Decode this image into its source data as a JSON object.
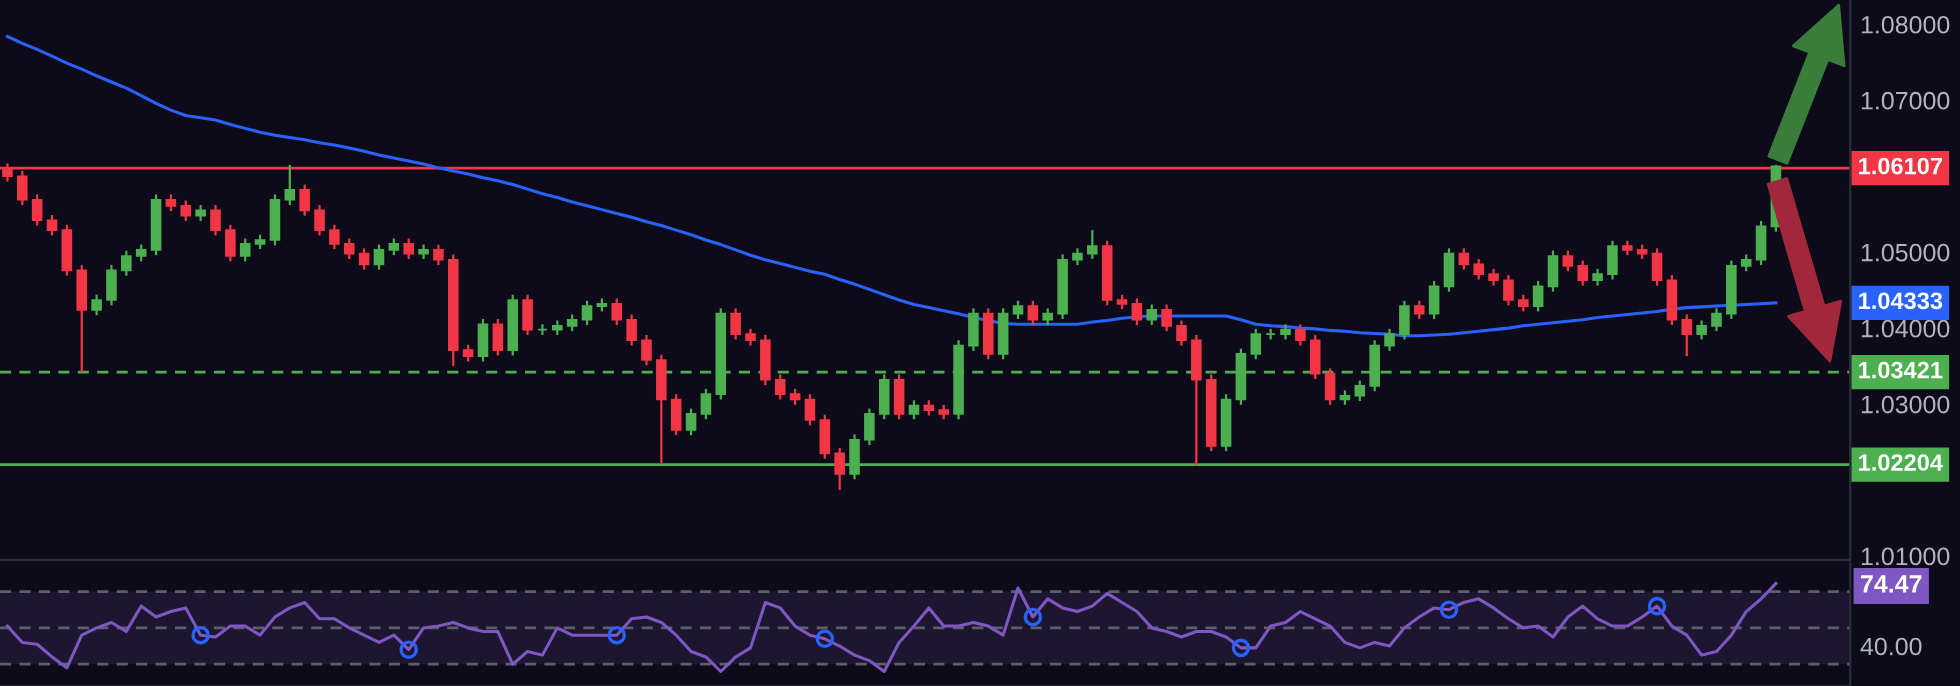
{
  "chart_data": [
    {
      "type": "candlestick",
      "categories": [
        null,
        null,
        null,
        null,
        null,
        null,
        null,
        null,
        null,
        null,
        null,
        null,
        null,
        null,
        null,
        null,
        null,
        null,
        null,
        null,
        null,
        null,
        null,
        null,
        null,
        null,
        null,
        null,
        null,
        null,
        null,
        null,
        null,
        null,
        null,
        null,
        null,
        null,
        null,
        null,
        null,
        null,
        null,
        null,
        null,
        null,
        null,
        null,
        null,
        null,
        null,
        null,
        null,
        null,
        null,
        null,
        null,
        null,
        null,
        null,
        null,
        null,
        null,
        null,
        null,
        null,
        null,
        null,
        null,
        null,
        null,
        null,
        null,
        null,
        null,
        null,
        null,
        null,
        null,
        null,
        null,
        null,
        null,
        null,
        null,
        null,
        null,
        null,
        null,
        null,
        null,
        null,
        null,
        null,
        null,
        null,
        null,
        null,
        null,
        null,
        null,
        null,
        null,
        null,
        null,
        null,
        null,
        null,
        null,
        null,
        null,
        null,
        null,
        null,
        null,
        null,
        null,
        null,
        null,
        null
      ],
      "ohlc": [
        [
          1.061,
          1.0617,
          1.0593,
          1.06
        ],
        [
          1.06,
          1.0607,
          1.0562,
          1.0569
        ],
        [
          1.0569,
          1.0576,
          1.0535,
          1.0542
        ],
        [
          1.0542,
          1.0549,
          1.0522,
          1.0529
        ],
        [
          1.0529,
          1.0536,
          1.0469,
          1.0476
        ],
        [
          1.0476,
          1.0483,
          1.0342,
          1.0424
        ],
        [
          1.0424,
          1.0444,
          1.0417,
          1.0437
        ],
        [
          1.0437,
          1.0483,
          1.043,
          1.0476
        ],
        [
          1.0476,
          1.0502,
          1.0469,
          1.0495
        ],
        [
          1.0495,
          1.051,
          1.0488,
          1.0503
        ],
        [
          1.0503,
          1.0576,
          1.0496,
          1.0569
        ],
        [
          1.0569,
          1.0576,
          1.0554,
          1.0561
        ],
        [
          1.0561,
          1.0568,
          1.0541,
          1.0548
        ],
        [
          1.0548,
          1.0562,
          1.0541,
          1.0555
        ],
        [
          1.0555,
          1.0562,
          1.0522,
          1.0529
        ],
        [
          1.0529,
          1.0536,
          1.0488,
          1.0495
        ],
        [
          1.0495,
          1.0518,
          1.0488,
          1.0511
        ],
        [
          1.0511,
          1.0523,
          1.0504,
          1.0516
        ],
        [
          1.0516,
          1.0576,
          1.0509,
          1.0569
        ],
        [
          1.0569,
          1.0615,
          1.0562,
          1.0582
        ],
        [
          1.0582,
          1.0589,
          1.0548,
          1.0555
        ],
        [
          1.0555,
          1.0562,
          1.0522,
          1.0529
        ],
        [
          1.0529,
          1.0536,
          1.0504,
          1.0511
        ],
        [
          1.0511,
          1.0518,
          1.0491,
          1.0498
        ],
        [
          1.0498,
          1.0505,
          1.0477,
          1.0484
        ],
        [
          1.0484,
          1.051,
          1.0477,
          1.0503
        ],
        [
          1.0503,
          1.0518,
          1.0496,
          1.0511
        ],
        [
          1.0511,
          1.0518,
          1.0491,
          1.0498
        ],
        [
          1.0498,
          1.051,
          1.0491,
          1.0503
        ],
        [
          1.0503,
          1.051,
          1.0483,
          1.049
        ],
        [
          1.049,
          1.0497,
          1.035,
          1.0371
        ],
        [
          1.0371,
          1.0378,
          1.0356,
          1.0363
        ],
        [
          1.0363,
          1.0412,
          1.0356,
          1.0405
        ],
        [
          1.0405,
          1.0412,
          1.0364,
          1.0371
        ],
        [
          1.0371,
          1.0444,
          1.0364,
          1.0437
        ],
        [
          1.0437,
          1.0444,
          1.0391,
          1.0398
        ],
        [
          1.0398,
          1.0405,
          1.0391,
          1.0398
        ],
        [
          1.0398,
          1.041,
          1.0391,
          1.0403
        ],
        [
          1.0403,
          1.0418,
          1.0396,
          1.0411
        ],
        [
          1.0411,
          1.0436,
          1.0404,
          1.0429
        ],
        [
          1.0429,
          1.0439,
          1.0422,
          1.0432
        ],
        [
          1.0432,
          1.0439,
          1.0404,
          1.0411
        ],
        [
          1.0411,
          1.0418,
          1.0377,
          1.0384
        ],
        [
          1.0384,
          1.0391,
          1.0351,
          1.0358
        ],
        [
          1.0358,
          1.0365,
          1.0221,
          1.0306
        ],
        [
          1.0306,
          1.0313,
          1.0259,
          1.0266
        ],
        [
          1.0266,
          1.0294,
          1.0259,
          1.0287
        ],
        [
          1.0287,
          1.032,
          1.028,
          1.0313
        ],
        [
          1.0313,
          1.0426,
          1.0306,
          1.0419
        ],
        [
          1.0419,
          1.0426,
          1.0385,
          1.0392
        ],
        [
          1.0392,
          1.0399,
          1.0377,
          1.0384
        ],
        [
          1.0384,
          1.0391,
          1.0325,
          1.0332
        ],
        [
          1.0332,
          1.0339,
          1.0306,
          1.0313
        ],
        [
          1.0313,
          1.032,
          1.0299,
          1.0306
        ],
        [
          1.0306,
          1.0313,
          1.0272,
          1.0279
        ],
        [
          1.0279,
          1.0286,
          1.0228,
          1.0235
        ],
        [
          1.0235,
          1.0242,
          1.0187,
          1.0208
        ],
        [
          1.0208,
          1.026,
          1.0201,
          1.0253
        ],
        [
          1.0253,
          1.0294,
          1.0246,
          1.0287
        ],
        [
          1.0287,
          1.0339,
          1.028,
          1.0332
        ],
        [
          1.0332,
          1.0339,
          1.028,
          1.0287
        ],
        [
          1.0287,
          1.0305,
          1.028,
          1.0298
        ],
        [
          1.0298,
          1.0305,
          1.0285,
          1.0292
        ],
        [
          1.0292,
          1.0299,
          1.028,
          1.0287
        ],
        [
          1.0287,
          1.0384,
          1.028,
          1.0377
        ],
        [
          1.0377,
          1.0426,
          1.037,
          1.0419
        ],
        [
          1.0419,
          1.0426,
          1.0359,
          1.0366
        ],
        [
          1.0366,
          1.0426,
          1.0359,
          1.0419
        ],
        [
          1.0419,
          1.0436,
          1.0412,
          1.0429
        ],
        [
          1.0429,
          1.0436,
          1.0404,
          1.0411
        ],
        [
          1.0411,
          1.0426,
          1.0404,
          1.0419
        ],
        [
          1.0419,
          1.0497,
          1.0412,
          1.049
        ],
        [
          1.049,
          1.0505,
          1.0483,
          1.0498
        ],
        [
          1.0498,
          1.0529,
          1.0491,
          1.0508
        ],
        [
          1.0508,
          1.0515,
          1.043,
          1.0437
        ],
        [
          1.0437,
          1.0444,
          1.0425,
          1.0432
        ],
        [
          1.0432,
          1.0439,
          1.0404,
          1.0411
        ],
        [
          1.0411,
          1.0431,
          1.0404,
          1.0424
        ],
        [
          1.0424,
          1.0431,
          1.0396,
          1.0403
        ],
        [
          1.0403,
          1.041,
          1.0377,
          1.0384
        ],
        [
          1.0384,
          1.0391,
          1.0219,
          1.0332
        ],
        [
          1.0332,
          1.0339,
          1.0238,
          1.0245
        ],
        [
          1.0245,
          1.0313,
          1.0238,
          1.0306
        ],
        [
          1.0306,
          1.0373,
          1.0299,
          1.0366
        ],
        [
          1.0366,
          1.0399,
          1.0359,
          1.0392
        ],
        [
          1.0392,
          1.0399,
          1.0385,
          1.0392
        ],
        [
          1.0392,
          1.0405,
          1.0385,
          1.0398
        ],
        [
          1.0398,
          1.0405,
          1.0377,
          1.0384
        ],
        [
          1.0384,
          1.0391,
          1.0333,
          1.034
        ],
        [
          1.034,
          1.0347,
          1.0299,
          1.0306
        ],
        [
          1.0306,
          1.0318,
          1.0299,
          1.0311
        ],
        [
          1.0311,
          1.0331,
          1.0304,
          1.0324
        ],
        [
          1.0324,
          1.0384,
          1.0317,
          1.0377
        ],
        [
          1.0377,
          1.0399,
          1.037,
          1.0392
        ],
        [
          1.0392,
          1.0436,
          1.0385,
          1.0429
        ],
        [
          1.0429,
          1.0436,
          1.0412,
          1.0419
        ],
        [
          1.0419,
          1.0462,
          1.0412,
          1.0455
        ],
        [
          1.0455,
          1.0505,
          1.0448,
          1.0498
        ],
        [
          1.0498,
          1.0505,
          1.0477,
          1.0484
        ],
        [
          1.0484,
          1.0491,
          1.0464,
          1.0471
        ],
        [
          1.0471,
          1.0478,
          1.0456,
          1.0463
        ],
        [
          1.0463,
          1.047,
          1.043,
          1.0437
        ],
        [
          1.0437,
          1.0444,
          1.0422,
          1.0429
        ],
        [
          1.0429,
          1.0462,
          1.0422,
          1.0455
        ],
        [
          1.0455,
          1.0502,
          1.0448,
          1.0495
        ],
        [
          1.0495,
          1.0502,
          1.0475,
          1.0482
        ],
        [
          1.0482,
          1.0489,
          1.0456,
          1.0463
        ],
        [
          1.0463,
          1.0478,
          1.0456,
          1.0471
        ],
        [
          1.0471,
          1.0515,
          1.0464,
          1.0508
        ],
        [
          1.0508,
          1.0515,
          1.0496,
          1.0503
        ],
        [
          1.0503,
          1.051,
          1.0491,
          1.0498
        ],
        [
          1.0498,
          1.0505,
          1.0456,
          1.0463
        ],
        [
          1.0463,
          1.047,
          1.0404,
          1.0411
        ],
        [
          1.0411,
          1.0418,
          1.0363,
          1.0392
        ],
        [
          1.0392,
          1.041,
          1.0385,
          1.0403
        ],
        [
          1.0403,
          1.0426,
          1.0396,
          1.0419
        ],
        [
          1.0419,
          1.0489,
          1.0412,
          1.0482
        ],
        [
          1.0482,
          1.0497,
          1.0475,
          1.049
        ],
        [
          1.049,
          1.0541,
          1.0483,
          1.0534
        ],
        [
          1.0534,
          1.0615,
          1.0527,
          1.0613
        ]
      ],
      "colors": [
        "#f23645",
        "#f23645",
        "#f23645",
        "#f23645",
        "#f23645",
        "#f23645",
        "#4caf50",
        "#4caf50",
        "#4caf50",
        "#4caf50",
        "#4caf50",
        "#f23645",
        "#f23645",
        "#4caf50",
        "#f23645",
        "#f23645",
        "#4caf50",
        "#4caf50",
        "#4caf50",
        "#4caf50",
        "#f23645",
        "#f23645",
        "#f23645",
        "#f23645",
        "#f23645",
        "#4caf50",
        "#4caf50",
        "#f23645",
        "#4caf50",
        "#f23645",
        "#f23645",
        "#f23645",
        "#4caf50",
        "#f23645",
        "#4caf50",
        "#f23645",
        "#4caf50",
        "#4caf50",
        "#4caf50",
        "#4caf50",
        "#4caf50",
        "#f23645",
        "#f23645",
        "#f23645",
        "#f23645",
        "#f23645",
        "#4caf50",
        "#4caf50",
        "#4caf50",
        "#f23645",
        "#f23645",
        "#f23645",
        "#f23645",
        "#f23645",
        "#f23645",
        "#f23645",
        "#f23645",
        "#4caf50",
        "#4caf50",
        "#4caf50",
        "#f23645",
        "#4caf50",
        "#f23645",
        "#f23645",
        "#4caf50",
        "#4caf50",
        "#f23645",
        "#4caf50",
        "#4caf50",
        "#f23645",
        "#4caf50",
        "#4caf50",
        "#4caf50",
        "#4caf50",
        "#f23645",
        "#f23645",
        "#f23645",
        "#4caf50",
        "#f23645",
        "#f23645",
        "#f23645",
        "#f23645",
        "#4caf50",
        "#4caf50",
        "#4caf50",
        "#4caf50",
        "#4caf50",
        "#f23645",
        "#f23645",
        "#f23645",
        "#4caf50",
        "#4caf50",
        "#4caf50",
        "#4caf50",
        "#4caf50",
        "#f23645",
        "#4caf50",
        "#4caf50",
        "#f23645",
        "#f23645",
        "#f23645",
        "#f23645",
        "#f23645",
        "#4caf50",
        "#4caf50",
        "#f23645",
        "#f23645",
        "#4caf50",
        "#4caf50",
        "#f23645",
        "#f23645",
        "#f23645",
        "#f23645",
        "#f23645",
        "#4caf50",
        "#4caf50",
        "#4caf50",
        "#4caf50",
        "#4caf50",
        "#4caf50"
      ],
      "series": [
        {
          "type": "line",
          "color": "#2962ff",
          "values": [
            1.0784,
            1.0775,
            1.0767,
            1.0758,
            1.0749,
            1.0741,
            1.0732,
            1.0724,
            1.0716,
            1.0706,
            1.0696,
            1.0687,
            1.068,
            1.0677,
            1.0674,
            1.0668,
            1.0663,
            1.0658,
            1.0654,
            1.0651,
            1.0648,
            1.0644,
            1.0641,
            1.0637,
            1.0633,
            1.0628,
            1.0624,
            1.062,
            1.0616,
            1.0611,
            1.0607,
            1.0603,
            1.0598,
            1.0594,
            1.0589,
            1.0583,
            1.0577,
            1.0572,
            1.0566,
            1.0561,
            1.0556,
            1.0551,
            1.0546,
            1.054,
            1.0535,
            1.0529,
            1.0523,
            1.0516,
            1.051,
            1.0503,
            1.0496,
            1.049,
            1.0485,
            1.048,
            1.0475,
            1.0471,
            1.0464,
            1.0458,
            1.0451,
            1.0444,
            1.0437,
            1.0431,
            1.0427,
            1.0423,
            1.0419,
            1.0414,
            1.041,
            1.0406,
            1.0405,
            1.0405,
            1.0405,
            1.0405,
            1.0405,
            1.0408,
            1.041,
            1.0413,
            1.0415,
            1.0416,
            1.0416,
            1.0416,
            1.0416,
            1.0416,
            1.0416,
            1.0411,
            1.0405,
            1.0403,
            1.0402,
            1.04,
            1.0399,
            1.0397,
            1.0396,
            1.0394,
            1.0393,
            1.0392,
            1.039,
            1.039,
            1.0391,
            1.0392,
            1.0394,
            1.0396,
            1.0398,
            1.04,
            1.0403,
            1.0405,
            1.0407,
            1.0409,
            1.0411,
            1.0414,
            1.0416,
            1.0418,
            1.042,
            1.0422,
            1.0425,
            1.0427,
            1.0428,
            1.0429,
            1.043,
            1.0431,
            1.0432,
            1.04333
          ]
        }
      ],
      "annotations": [
        "1.04333"
      ],
      "ylim": [
        1.0095,
        1.0832
      ],
      "yticks": [
        {
          "value": 1.08,
          "label": "1.08000"
        },
        {
          "value": 1.07,
          "label": "1.07000"
        },
        {
          "value": 1.05,
          "label": "1.05000"
        },
        {
          "value": 1.04,
          "label": "1.04000"
        },
        {
          "value": 1.03,
          "label": "1.03000"
        },
        {
          "value": 1.01,
          "label": "1.01000"
        }
      ],
      "ref_lines": [
        {
          "axis": "y",
          "value": 1.06107,
          "label": "1.06107",
          "color": "#f23645",
          "line_style": "solid"
        },
        {
          "axis": "y",
          "value": 1.03421,
          "label": "1.03421",
          "color": "#4caf50",
          "line_style": "dashed"
        },
        {
          "axis": "y",
          "value": 1.02204,
          "label": "1.02204",
          "color": "#4caf50",
          "line_style": "solid"
        }
      ],
      "tick_labels": "y"
    },
    {
      "type": "line",
      "categories": [
        null,
        null,
        null,
        null,
        null,
        null,
        null,
        null,
        null,
        null,
        null,
        null,
        null,
        null,
        null,
        null,
        null,
        null,
        null,
        null,
        null,
        null,
        null,
        null,
        null,
        null,
        null,
        null,
        null,
        null,
        null,
        null,
        null,
        null,
        null,
        null,
        null,
        null,
        null,
        null,
        null,
        null,
        null,
        null,
        null,
        null,
        null,
        null,
        null,
        null,
        null,
        null,
        null,
        null,
        null,
        null,
        null,
        null,
        null,
        null,
        null,
        null,
        null,
        null,
        null,
        null,
        null,
        null,
        null,
        null,
        null,
        null,
        null,
        null,
        null,
        null,
        null,
        null,
        null,
        null,
        null,
        null,
        null,
        null,
        null,
        null,
        null,
        null,
        null,
        null,
        null,
        null,
        null,
        null,
        null,
        null,
        null,
        null,
        null,
        null,
        null,
        null,
        null,
        null,
        null,
        null,
        null,
        null,
        null,
        null,
        null,
        null,
        null,
        null,
        null,
        null,
        null,
        null,
        null,
        null
      ],
      "series": [
        {
          "color": "#7e57c2",
          "values": [
            51,
            42,
            41,
            34,
            28,
            46,
            50,
            53,
            48,
            62,
            56,
            59,
            61,
            46,
            45,
            51,
            51,
            46,
            56,
            61,
            64,
            55,
            55,
            50,
            46,
            42,
            46,
            38,
            50,
            51,
            53,
            50,
            48,
            48,
            30,
            37,
            35,
            50,
            46,
            46,
            46,
            46,
            55,
            56,
            53,
            46,
            37,
            34,
            26,
            34,
            39,
            64,
            61,
            51,
            46,
            44,
            40,
            35,
            32,
            26,
            42,
            51,
            61,
            51,
            51,
            53,
            51,
            46,
            72,
            56,
            66,
            61,
            59,
            62,
            69,
            64,
            59,
            50,
            48,
            45,
            48,
            48,
            45,
            39,
            39,
            51,
            53,
            59,
            55,
            51,
            42,
            39,
            42,
            40,
            50,
            56,
            61,
            60,
            64,
            66,
            61,
            55,
            50,
            51,
            45,
            56,
            62,
            55,
            51,
            51,
            56,
            62,
            51,
            46,
            35,
            37,
            46,
            59,
            66,
            74.47
          ]
        }
      ],
      "ylim": [
        18,
        86
      ],
      "yticks": [
        {
          "value": 74.47,
          "label": "74.47"
        },
        {
          "value": 40,
          "label": "40.00"
        }
      ],
      "ref_lines": [
        {
          "axis": "y",
          "value": 70,
          "color": "#5d606b",
          "line_style": "dashed"
        },
        {
          "axis": "y",
          "value": 50,
          "color": "#5d606b",
          "line_style": "dashed"
        },
        {
          "axis": "y",
          "value": 30,
          "color": "#5d606b",
          "line_style": "dashed"
        }
      ],
      "bands": [
        {
          "axis": "y",
          "from": 30,
          "to": 70,
          "color": "#1c1631"
        }
      ],
      "tick_labels": "y"
    }
  ]
}
